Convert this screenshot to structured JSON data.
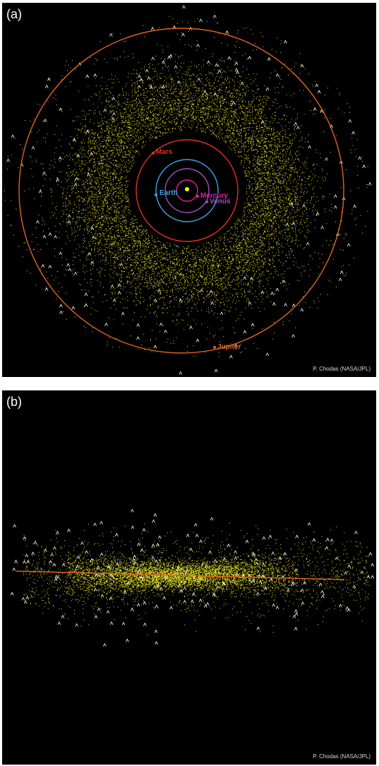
{
  "panels": [
    {
      "label": "(a)",
      "credit": "P. Chodas (NASA/JPL)",
      "planets": {
        "mars": "Mars",
        "earth": "Earth",
        "mercury": "Mercury",
        "venus": "Venus",
        "jupiter": "Jupiter"
      }
    },
    {
      "label": "(b)",
      "credit": "P. Chodas (NASA/JPL)"
    }
  ],
  "colors": {
    "background": "#000000",
    "asteroids": "#e6e62a",
    "jupiter": "#e06420",
    "mars": "#e83020",
    "earth": "#3aa8e8",
    "venus": "#a050c0",
    "mercury": "#e020a0",
    "sun": "#ffff00",
    "comets": "#ffffff"
  },
  "icons": {
    "comet_marker": "chevron-marker"
  }
}
